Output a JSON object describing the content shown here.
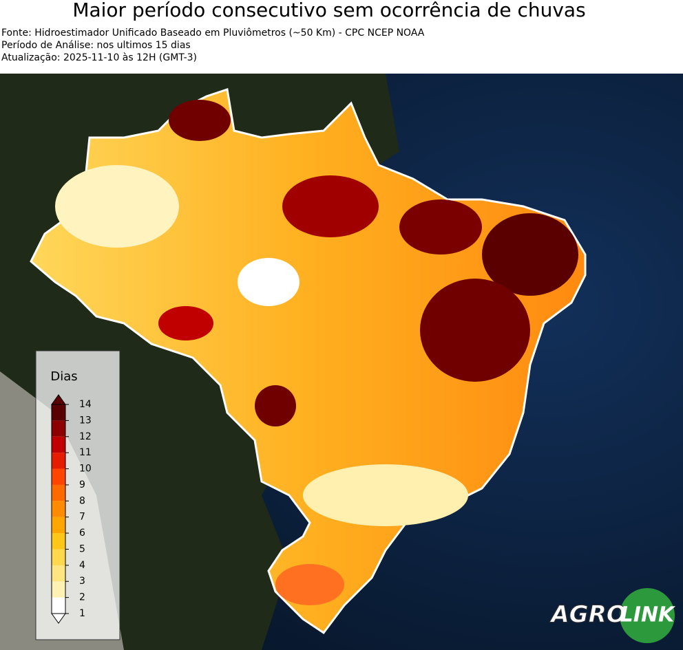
{
  "header": {
    "title": "Maior período consecutivo sem ocorrência de chuvas",
    "lines": [
      "Fonte: Hidroestimador Unificado Baseado em Pluviômetros (~50 Km) - CPC NCEP NOAA",
      "Período de Análise: nos ultimos 15 dias",
      "Atualização: 2025-11-10 às 12H (GMT-3)"
    ]
  },
  "colorbar": {
    "label": "Dias",
    "ticks": [
      1,
      2,
      3,
      4,
      5,
      6,
      7,
      8,
      9,
      10,
      11,
      12,
      13,
      14
    ],
    "colors": [
      "#ffffff",
      "#fff2b3",
      "#ffe680",
      "#ffd84d",
      "#ffc61a",
      "#ffa500",
      "#ff8c00",
      "#ff6a00",
      "#ff4500",
      "#e61c00",
      "#c00000",
      "#8c0000",
      "#5a0000"
    ]
  },
  "logo": {
    "parts": [
      "AGRO",
      "LINK"
    ]
  }
}
